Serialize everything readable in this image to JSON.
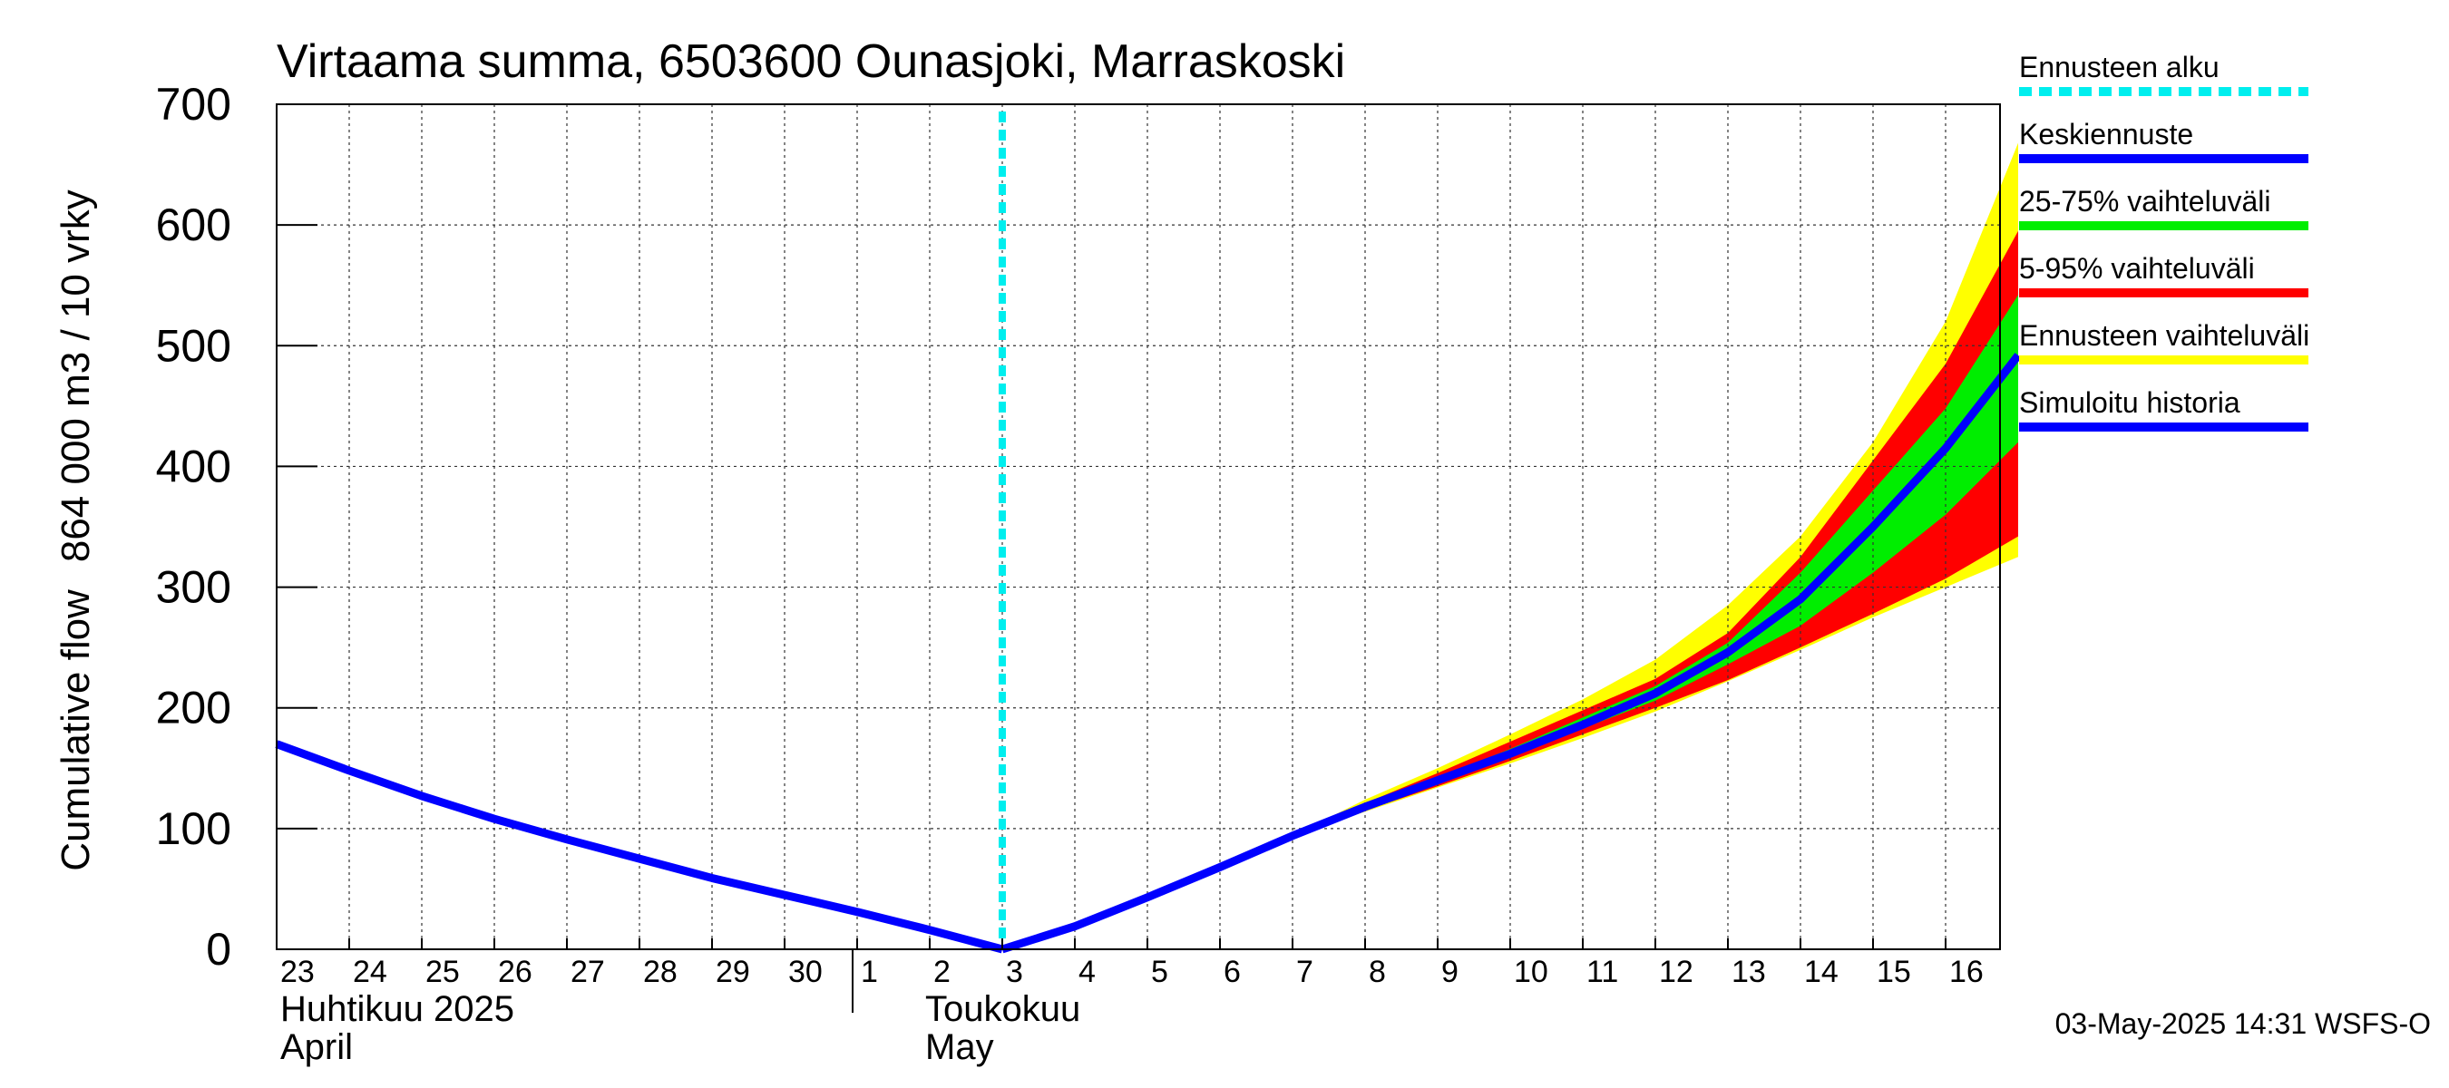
{
  "chart_data": {
    "type": "area",
    "title": "Virtaama summa, 6503600 Ounasjoki, Marraskoski",
    "ylabel_fi": "864 000 m3 / 10 vrky",
    "ylabel_en": "Cumulative flow",
    "ylim": [
      0,
      700
    ],
    "yticks": [
      0,
      100,
      200,
      300,
      400,
      500,
      600,
      700
    ],
    "grid": true,
    "legend_position": "right",
    "x_tick_labels": [
      "23",
      "24",
      "25",
      "26",
      "27",
      "28",
      "29",
      "30",
      "1",
      "2",
      "3",
      "4",
      "5",
      "6",
      "7",
      "8",
      "9",
      "10",
      "11",
      "12",
      "13",
      "14",
      "15",
      "16"
    ],
    "month_labels": [
      {
        "line1": "Huhtikuu  2025",
        "line2": "April"
      },
      {
        "line1": "Toukokuu",
        "line2": "May"
      }
    ],
    "forecast_start": "2025-05-03",
    "history": {
      "dates": [
        "2025-04-23",
        "2025-04-24",
        "2025-04-25",
        "2025-04-26",
        "2025-04-27",
        "2025-04-28",
        "2025-04-29",
        "2025-04-30",
        "2025-05-01",
        "2025-05-02",
        "2025-05-03"
      ],
      "values": [
        170,
        148,
        127,
        108,
        91,
        75,
        59,
        45,
        31,
        16,
        0
      ]
    },
    "series": [
      {
        "name": "Keskiennuste",
        "dates": [
          "2025-05-03",
          "2025-05-04",
          "2025-05-05",
          "2025-05-06",
          "2025-05-07",
          "2025-05-08",
          "2025-05-09",
          "2025-05-10",
          "2025-05-11",
          "2025-05-12",
          "2025-05-13",
          "2025-05-14",
          "2025-05-15",
          "2025-05-16",
          "2025-05-17"
        ],
        "values": [
          0,
          19,
          43,
          68,
          94,
          118,
          140,
          162,
          186,
          212,
          246,
          290,
          350,
          415,
          492
        ]
      }
    ],
    "bands": [
      {
        "name": "Ennusteen vaihteluväli",
        "dates": [
          "2025-05-07",
          "2025-05-08",
          "2025-05-09",
          "2025-05-10",
          "2025-05-11",
          "2025-05-12",
          "2025-05-13",
          "2025-05-14",
          "2025-05-15",
          "2025-05-16",
          "2025-05-17"
        ],
        "low": [
          94,
          114,
          134,
          154,
          175,
          197,
          222,
          248,
          275,
          300,
          325
        ],
        "high": [
          94,
          124,
          150,
          178,
          207,
          240,
          285,
          342,
          420,
          520,
          668
        ]
      },
      {
        "name": "5-95% vaihteluväli",
        "dates": [
          "2025-05-07",
          "2025-05-08",
          "2025-05-09",
          "2025-05-10",
          "2025-05-11",
          "2025-05-12",
          "2025-05-13",
          "2025-05-14",
          "2025-05-15",
          "2025-05-16",
          "2025-05-17"
        ],
        "low": [
          94,
          115,
          135,
          156,
          178,
          200,
          223,
          250,
          278,
          307,
          342
        ],
        "high": [
          94,
          121,
          146,
          172,
          198,
          224,
          262,
          325,
          405,
          485,
          595
        ]
      },
      {
        "name": "25-75% vaihteluväli",
        "dates": [
          "2025-05-07",
          "2025-05-08",
          "2025-05-09",
          "2025-05-10",
          "2025-05-11",
          "2025-05-12",
          "2025-05-13",
          "2025-05-14",
          "2025-05-15",
          "2025-05-16",
          "2025-05-17"
        ],
        "low": [
          94,
          117,
          138,
          160,
          183,
          206,
          236,
          268,
          312,
          360,
          420
        ],
        "high": [
          94,
          119,
          142,
          166,
          192,
          218,
          254,
          312,
          380,
          448,
          542
        ]
      }
    ],
    "legend": [
      {
        "label": "Ennusteen alku",
        "color": "#00eeee",
        "style": "dashed"
      },
      {
        "label": "Keskiennuste",
        "color": "#0000ff",
        "style": "solid"
      },
      {
        "label": "25-75% vaihteluväli",
        "color": "#00ee00",
        "style": "solid"
      },
      {
        "label": "5-95% vaihteluväli",
        "color": "#ff0000",
        "style": "solid"
      },
      {
        "label": "Ennusteen vaihteluväli",
        "color": "#ffff00",
        "style": "solid"
      },
      {
        "label": "Simuloitu historia",
        "color": "#0000ff",
        "style": "solid"
      }
    ],
    "footer": "03-May-2025 14:31 WSFS-O"
  }
}
